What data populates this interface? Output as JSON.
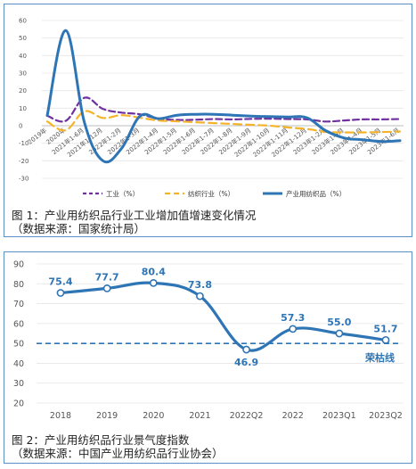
{
  "chart_data": [
    {
      "type": "line",
      "ylim": [
        -30,
        60
      ],
      "yticks": [
        -30,
        -20,
        -10,
        0,
        10,
        20,
        30,
        40,
        50,
        60
      ],
      "categories": [
        "2019年",
        "2020年",
        "2021年1-6月",
        "2021年1-12月",
        "2022年1-2月",
        "2022年1-3月",
        "2022年1-4月",
        "2022年1-5月",
        "2022年1-6月",
        "2022年1-7月",
        "2022年1-8月",
        "2022年1-9月",
        "2022年1-10月",
        "2022年1-11月",
        "2022年1-12月",
        "2023年1-2月",
        "2023年1-3月",
        "2023年1-4月",
        "2023年1-5月",
        "2023年1-6月"
      ],
      "series": [
        {
          "name": "工业（%）",
          "color": "#7030a0",
          "dash": "dashed",
          "values": [
            5.7,
            2.8,
            15.9,
            9.6,
            7.5,
            6.5,
            4.0,
            3.3,
            3.4,
            3.8,
            3.6,
            3.9,
            4.0,
            3.8,
            3.6,
            2.4,
            3.0,
            3.6,
            3.6,
            3.8
          ]
        },
        {
          "name": "纺织行业（%）",
          "color": "#f5b32a",
          "dash": "dashed",
          "values": [
            2.4,
            -2.6,
            8.2,
            4.4,
            6.0,
            4.5,
            3.0,
            2.5,
            2.0,
            1.5,
            1.0,
            0.5,
            0.0,
            -1.0,
            -1.9,
            -3.5,
            -3.8,
            -3.8,
            -3.6,
            -3.3
          ]
        },
        {
          "name": "产业用纺织品（%）",
          "color": "#2e75b6",
          "dash": "solid",
          "values": [
            5.8,
            54.3,
            2.0,
            -20.0,
            -13.0,
            5.5,
            4.0,
            6.0,
            6.5,
            6.5,
            6.0,
            5.5,
            5.2,
            5.0,
            4.5,
            -2.8,
            -7.0,
            -8.0,
            -9.0,
            -8.5
          ]
        }
      ],
      "caption": "图 1：产业用纺织品行业工业增加值增速变化情况\n（数据来源：国家统计局）"
    },
    {
      "type": "line",
      "ylim": [
        20,
        90
      ],
      "yticks": [
        20,
        30,
        40,
        50,
        60,
        70,
        80,
        90
      ],
      "categories": [
        "2018",
        "2019",
        "2020",
        "2021",
        "2022Q2",
        "2022",
        "2023Q1",
        "2023Q2"
      ],
      "series": [
        {
          "name": "景气度指数",
          "color": "#2e75b6",
          "values": [
            75.4,
            77.7,
            80.4,
            73.8,
            46.9,
            57.3,
            55.0,
            51.7
          ],
          "labels": [
            "75.4",
            "77.7",
            "80.4",
            "73.8",
            "46.9",
            "57.3",
            "55.0",
            "51.7"
          ]
        }
      ],
      "reference_line": {
        "value": 50,
        "label": "荣枯线",
        "color": "#2e75b6",
        "dash": "dashed"
      },
      "caption": "图 2：产业用纺织品行业景气度指数\n（数据来源：中国产业用纺织品行业协会）"
    }
  ],
  "captions": {
    "fig1_line1": "图 1：产业用纺织品行业工业增加值增速变化情况",
    "fig1_line2": "（数据来源：国家统计局）",
    "fig2_line1": "图 2：产业用纺织品行业景气度指数",
    "fig2_line2": "（数据来源：中国产业用纺织品行业协会）"
  }
}
